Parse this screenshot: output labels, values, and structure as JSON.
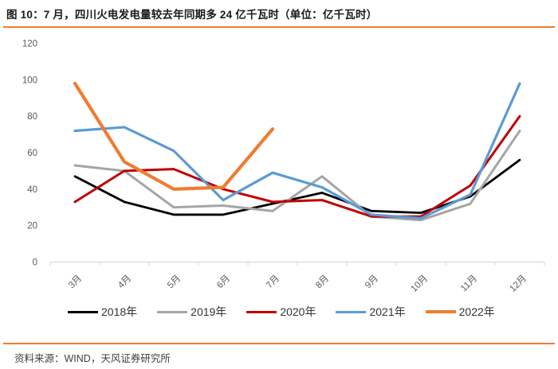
{
  "header": {
    "title": "图 10：7 月，四川火电发电量较去年同期多 24 亿千瓦时（单位：亿千瓦时）"
  },
  "footer": {
    "source_note": "资料来源：WIND，天风证券研究所"
  },
  "colors": {
    "accent": "#ED7D31",
    "title_text": "#1a1a1a",
    "axis_text": "#595959",
    "axis_line": "#D9D9D9",
    "legend_text": "#333333",
    "source_text": "#404040"
  },
  "chart_data": {
    "type": "line",
    "title": "图 10：7 月，四川火电发电量较去年同期多 24 亿千瓦时（单位：亿千瓦时）",
    "unit": "亿千瓦时",
    "categories": [
      "3月",
      "4月",
      "5月",
      "6月",
      "7月",
      "8月",
      "9月",
      "10月",
      "11月",
      "12月"
    ],
    "series": [
      {
        "name": "2018年",
        "color": "#000000",
        "values": [
          47,
          33,
          26,
          26,
          32,
          38,
          28,
          27,
          36,
          56
        ]
      },
      {
        "name": "2019年",
        "color": "#A5A5A5",
        "values": [
          53,
          50,
          30,
          31,
          28,
          47,
          25,
          23,
          32,
          72
        ]
      },
      {
        "name": "2020年",
        "color": "#C00000",
        "values": [
          33,
          50,
          51,
          40,
          33,
          34,
          25,
          25,
          42,
          80
        ]
      },
      {
        "name": "2021年",
        "color": "#5B9BD5",
        "values": [
          72,
          74,
          61,
          34,
          49,
          41,
          26,
          24,
          37,
          98
        ]
      },
      {
        "name": "2022年",
        "color": "#ED7D31",
        "values": [
          98,
          55,
          40,
          41,
          73,
          null,
          null,
          null,
          null,
          null
        ]
      }
    ],
    "xlabel": "",
    "ylabel": "",
    "ylim": [
      0,
      120
    ],
    "yticks": [
      0,
      20,
      40,
      60,
      80,
      100,
      120
    ],
    "grid": false,
    "legend_position": "bottom",
    "x_tick_rotation": -45
  }
}
